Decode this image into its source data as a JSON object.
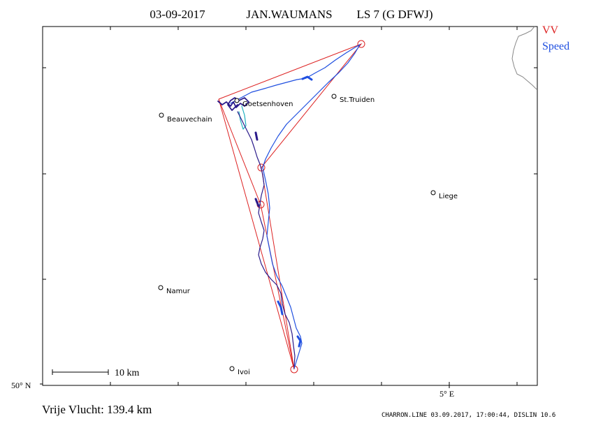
{
  "header": {
    "date": "03-09-2017",
    "pilot": "JAN.WAUMANS",
    "glider": "LS 7 (G DFWJ)"
  },
  "legend": {
    "vv_label": "VV",
    "vv_color": "#dd2222",
    "speed_label": "Speed",
    "speed_color": "#1f4fe0"
  },
  "axes": {
    "lat_label": "50° N",
    "lon_label": "5° E"
  },
  "scale_bar": {
    "label": "10  km"
  },
  "footer": {
    "distance": "Vrije Vlucht:  139.4 km",
    "credit": "CHARRON.LINE 03.09.2017, 17:00:44, DISLIN 10.6"
  },
  "places": [
    {
      "name": "Goetsenhoven"
    },
    {
      "name": "St.Truiden"
    },
    {
      "name": "Beauvechain"
    },
    {
      "name": "Liege"
    },
    {
      "name": "Namur"
    },
    {
      "name": "Ivoi"
    }
  ],
  "colors": {
    "task_line": "#dd2222",
    "track_dark": "#2a1a8a",
    "track_light": "#1f4fe0",
    "track_cyan": "#20b0c0",
    "border": "#888888"
  }
}
